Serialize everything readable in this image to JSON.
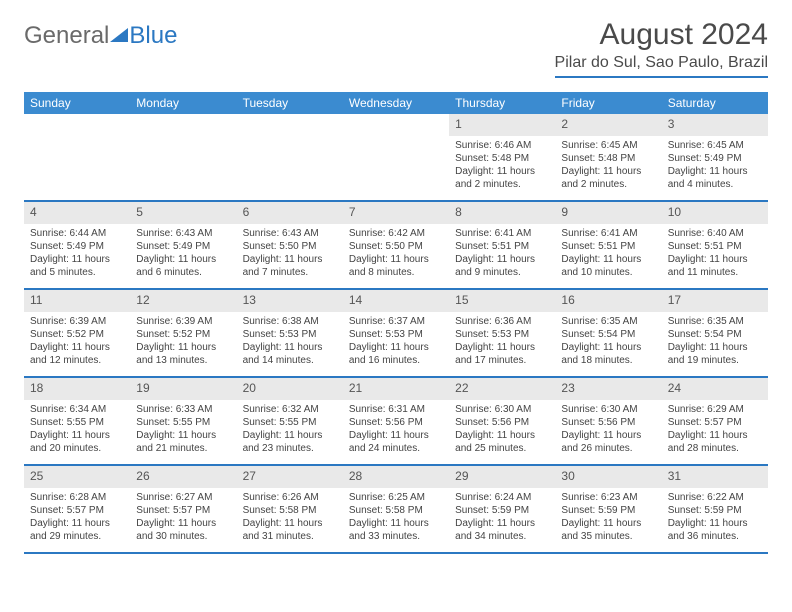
{
  "logo": {
    "part1": "General",
    "part2": "Blue"
  },
  "title": "August 2024",
  "location": "Pilar do Sul, Sao Paulo, Brazil",
  "header_bg": "#3b8bd0",
  "accent": "#2b78c2",
  "daynum_bg": "#e9e9e9",
  "text_color": "#444444",
  "day_names": [
    "Sunday",
    "Monday",
    "Tuesday",
    "Wednesday",
    "Thursday",
    "Friday",
    "Saturday"
  ],
  "weeks": [
    [
      null,
      null,
      null,
      null,
      {
        "n": "1",
        "sr": "6:46 AM",
        "ss": "5:48 PM",
        "dl": "11 hours and 2 minutes."
      },
      {
        "n": "2",
        "sr": "6:45 AM",
        "ss": "5:48 PM",
        "dl": "11 hours and 2 minutes."
      },
      {
        "n": "3",
        "sr": "6:45 AM",
        "ss": "5:49 PM",
        "dl": "11 hours and 4 minutes."
      }
    ],
    [
      {
        "n": "4",
        "sr": "6:44 AM",
        "ss": "5:49 PM",
        "dl": "11 hours and 5 minutes."
      },
      {
        "n": "5",
        "sr": "6:43 AM",
        "ss": "5:49 PM",
        "dl": "11 hours and 6 minutes."
      },
      {
        "n": "6",
        "sr": "6:43 AM",
        "ss": "5:50 PM",
        "dl": "11 hours and 7 minutes."
      },
      {
        "n": "7",
        "sr": "6:42 AM",
        "ss": "5:50 PM",
        "dl": "11 hours and 8 minutes."
      },
      {
        "n": "8",
        "sr": "6:41 AM",
        "ss": "5:51 PM",
        "dl": "11 hours and 9 minutes."
      },
      {
        "n": "9",
        "sr": "6:41 AM",
        "ss": "5:51 PM",
        "dl": "11 hours and 10 minutes."
      },
      {
        "n": "10",
        "sr": "6:40 AM",
        "ss": "5:51 PM",
        "dl": "11 hours and 11 minutes."
      }
    ],
    [
      {
        "n": "11",
        "sr": "6:39 AM",
        "ss": "5:52 PM",
        "dl": "11 hours and 12 minutes."
      },
      {
        "n": "12",
        "sr": "6:39 AM",
        "ss": "5:52 PM",
        "dl": "11 hours and 13 minutes."
      },
      {
        "n": "13",
        "sr": "6:38 AM",
        "ss": "5:53 PM",
        "dl": "11 hours and 14 minutes."
      },
      {
        "n": "14",
        "sr": "6:37 AM",
        "ss": "5:53 PM",
        "dl": "11 hours and 16 minutes."
      },
      {
        "n": "15",
        "sr": "6:36 AM",
        "ss": "5:53 PM",
        "dl": "11 hours and 17 minutes."
      },
      {
        "n": "16",
        "sr": "6:35 AM",
        "ss": "5:54 PM",
        "dl": "11 hours and 18 minutes."
      },
      {
        "n": "17",
        "sr": "6:35 AM",
        "ss": "5:54 PM",
        "dl": "11 hours and 19 minutes."
      }
    ],
    [
      {
        "n": "18",
        "sr": "6:34 AM",
        "ss": "5:55 PM",
        "dl": "11 hours and 20 minutes."
      },
      {
        "n": "19",
        "sr": "6:33 AM",
        "ss": "5:55 PM",
        "dl": "11 hours and 21 minutes."
      },
      {
        "n": "20",
        "sr": "6:32 AM",
        "ss": "5:55 PM",
        "dl": "11 hours and 23 minutes."
      },
      {
        "n": "21",
        "sr": "6:31 AM",
        "ss": "5:56 PM",
        "dl": "11 hours and 24 minutes."
      },
      {
        "n": "22",
        "sr": "6:30 AM",
        "ss": "5:56 PM",
        "dl": "11 hours and 25 minutes."
      },
      {
        "n": "23",
        "sr": "6:30 AM",
        "ss": "5:56 PM",
        "dl": "11 hours and 26 minutes."
      },
      {
        "n": "24",
        "sr": "6:29 AM",
        "ss": "5:57 PM",
        "dl": "11 hours and 28 minutes."
      }
    ],
    [
      {
        "n": "25",
        "sr": "6:28 AM",
        "ss": "5:57 PM",
        "dl": "11 hours and 29 minutes."
      },
      {
        "n": "26",
        "sr": "6:27 AM",
        "ss": "5:57 PM",
        "dl": "11 hours and 30 minutes."
      },
      {
        "n": "27",
        "sr": "6:26 AM",
        "ss": "5:58 PM",
        "dl": "11 hours and 31 minutes."
      },
      {
        "n": "28",
        "sr": "6:25 AM",
        "ss": "5:58 PM",
        "dl": "11 hours and 33 minutes."
      },
      {
        "n": "29",
        "sr": "6:24 AM",
        "ss": "5:59 PM",
        "dl": "11 hours and 34 minutes."
      },
      {
        "n": "30",
        "sr": "6:23 AM",
        "ss": "5:59 PM",
        "dl": "11 hours and 35 minutes."
      },
      {
        "n": "31",
        "sr": "6:22 AM",
        "ss": "5:59 PM",
        "dl": "11 hours and 36 minutes."
      }
    ]
  ],
  "labels": {
    "sunrise": "Sunrise: ",
    "sunset": "Sunset: ",
    "daylight": "Daylight: "
  }
}
